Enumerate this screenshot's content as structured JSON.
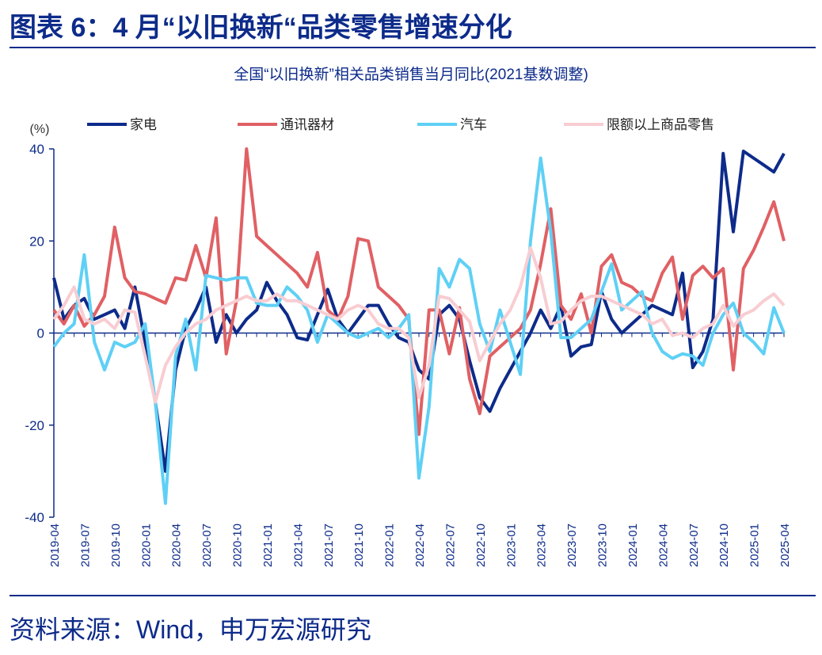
{
  "header": {
    "title": "图表 6：4 月“以旧换新“品类零售增速分化"
  },
  "chart_data": {
    "type": "line",
    "title": "全国“以旧换新”相关品类销售当月同比(2021基数调整)",
    "y_label": "(%)",
    "categories": [
      "2019-04",
      null,
      null,
      "2019-07",
      null,
      null,
      "2019-10",
      null,
      null,
      "2020-01",
      null,
      null,
      "2020-04",
      null,
      null,
      "2020-07",
      null,
      null,
      "2020-10",
      null,
      null,
      "2021-01",
      null,
      null,
      "2021-04",
      null,
      null,
      "2021-07",
      null,
      null,
      "2021-10",
      null,
      null,
      "2022-01",
      null,
      null,
      "2022-04",
      null,
      null,
      "2022-07",
      null,
      null,
      "2022-10",
      null,
      null,
      "2023-01",
      null,
      null,
      "2023-04",
      null,
      null,
      "2023-07",
      null,
      null,
      "2023-10",
      null,
      null,
      "2024-01",
      null,
      null,
      "2024-04",
      null,
      null,
      "2024-07",
      null,
      null,
      "2024-10",
      null,
      null,
      "2025-01",
      null,
      null,
      "2025-04"
    ],
    "series": [
      {
        "name": "家电",
        "color": "#0d2b8a",
        "values": [
          12,
          3,
          6,
          7.5,
          3,
          4,
          5,
          1,
          10,
          -2,
          -15,
          -30,
          -8,
          1,
          5,
          10,
          -2,
          4,
          0,
          3,
          5,
          11,
          7,
          4,
          -1,
          -1.5,
          4,
          9.5,
          3,
          0,
          3,
          6,
          6,
          2,
          -1,
          -2,
          -8,
          -10,
          4,
          6,
          3,
          -6,
          -14,
          -17,
          -12,
          -8,
          -4,
          0,
          5,
          1,
          6,
          -5,
          -3,
          -2.5,
          9,
          3,
          0,
          2,
          4,
          6,
          5,
          4,
          13,
          -7.5,
          -4,
          3,
          39,
          22,
          39.5,
          38,
          36.5,
          35,
          39
        ]
      },
      {
        "name": "通讯器材",
        "color": "#e06064",
        "values": [
          5,
          2,
          6,
          1.5,
          4,
          8,
          23,
          12,
          9,
          8.5,
          7.5,
          6.5,
          12,
          11.5,
          19,
          12,
          25,
          -4.5,
          7,
          40,
          21,
          19,
          17,
          15,
          13,
          10,
          17.5,
          5,
          3,
          8,
          20.5,
          20,
          10,
          8,
          6,
          3,
          -22,
          5,
          5,
          -4.5,
          5.5,
          -10,
          -17.5,
          -5,
          -3,
          -1,
          1,
          5,
          15,
          27,
          6,
          3,
          8.5,
          0,
          14.5,
          17,
          11,
          10,
          8,
          7,
          13,
          16.5,
          3,
          12.5,
          14.5,
          12,
          14,
          -8,
          14,
          18,
          23,
          28.5,
          20
        ]
      },
      {
        "name": "汽车",
        "color": "#5fd0f5",
        "values": [
          -3,
          0,
          2,
          17,
          -2,
          -8,
          -2,
          -3,
          -2,
          2,
          -15,
          -37,
          -5,
          3,
          -8,
          12.5,
          12,
          11.5,
          12,
          12,
          6.5,
          6,
          6,
          10,
          8,
          5,
          -2,
          4,
          2,
          0,
          -1,
          0,
          1,
          -1,
          1,
          4,
          -31.5,
          -16,
          14,
          10,
          16,
          14,
          2,
          -4,
          5,
          -2,
          -9,
          20,
          38,
          22,
          -1,
          -1,
          1,
          3,
          9,
          15,
          5,
          7,
          9,
          0,
          -4,
          -5.5,
          -4.5,
          -5,
          -7,
          0,
          4,
          6.5,
          0,
          -2,
          -4.5,
          5.5,
          0
        ]
      },
      {
        "name": "限额以上商品零售",
        "color": "#f8cdd2",
        "values": [
          3,
          6,
          10,
          3,
          2,
          3,
          1,
          5,
          4.5,
          -5,
          -15,
          -7,
          -3,
          0,
          2,
          3,
          5,
          6,
          7,
          8,
          7,
          7,
          8.5,
          7,
          7,
          6,
          5,
          4,
          3,
          5,
          6,
          5,
          2,
          1,
          1,
          -1,
          -14,
          -7,
          8,
          7.5,
          5,
          2.5,
          -6,
          -2,
          2,
          5,
          10,
          18.5,
          12,
          2,
          2.5,
          5,
          7,
          8,
          8,
          7,
          6,
          5,
          4,
          2,
          3,
          -0.5,
          0,
          -1,
          1,
          2,
          6,
          1.5,
          4,
          5,
          7,
          8.5,
          6
        ]
      }
    ],
    "ylim": [
      -40,
      40
    ],
    "yticks": [
      -40,
      -20,
      0,
      20,
      40
    ],
    "legend": "top"
  },
  "footer": {
    "source": "资料来源：Wind，申万宏源研究"
  }
}
